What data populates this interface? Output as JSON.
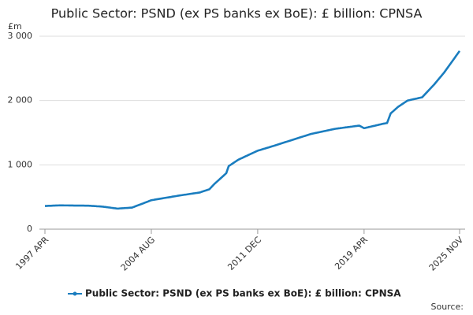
{
  "chart_data": {
    "type": "line",
    "title": "Public Sector: PSND (ex PS banks ex BoE): £ billion: CPNSA",
    "y_label": "£m",
    "source": "Source:",
    "grid": true,
    "ylim": [
      0,
      3000
    ],
    "yticks": [
      0,
      {
        "value": 1000,
        "label": "1 000"
      },
      {
        "value": 2000,
        "label": "2 000"
      },
      {
        "value": 3000,
        "label": "3 000"
      }
    ],
    "categories": [
      "1997 APR",
      null,
      null,
      null,
      null,
      null,
      null,
      null,
      null,
      null,
      null,
      null,
      null,
      null,
      null,
      null,
      null,
      null,
      null,
      null,
      null,
      null,
      null,
      null,
      null,
      null,
      null,
      null,
      null,
      null,
      null,
      null,
      null,
      null,
      null,
      null,
      null,
      null,
      null,
      null,
      null,
      null,
      null,
      null,
      null,
      null,
      null,
      null,
      null,
      null,
      null,
      null,
      null,
      null,
      null,
      null,
      null,
      null,
      null,
      null,
      null,
      null,
      null,
      null,
      null,
      null,
      null,
      null,
      null,
      null,
      null,
      null,
      null,
      null,
      null,
      null,
      null,
      null,
      null,
      null,
      null,
      null,
      null,
      null,
      null,
      null,
      null,
      null,
      "2004 AUG",
      null,
      null,
      null,
      null,
      null,
      null,
      null,
      null,
      null,
      null,
      null,
      null,
      null,
      null,
      null,
      null,
      null,
      null,
      null,
      null,
      null,
      null,
      null,
      null,
      null,
      null,
      null,
      null,
      null,
      null,
      null,
      null,
      null,
      null,
      null,
      null,
      null,
      null,
      null,
      null,
      null,
      null,
      null,
      null,
      null,
      null,
      null,
      null,
      null,
      null,
      null,
      null,
      null,
      null,
      null,
      null,
      null,
      null,
      null,
      null,
      null,
      null,
      null,
      null,
      null,
      null,
      null,
      null,
      null,
      null,
      null,
      null,
      null,
      null,
      null,
      null,
      null,
      null,
      null,
      null,
      null,
      null,
      null,
      null,
      null,
      null,
      null,
      "2011 DEC",
      null,
      null,
      null,
      null,
      null,
      null,
      null,
      null,
      null,
      null,
      null,
      null,
      null,
      null,
      null,
      null,
      null,
      null,
      null,
      null,
      null,
      null,
      null,
      null,
      null,
      null,
      null,
      null,
      null,
      null,
      null,
      null,
      null,
      null,
      null,
      null,
      null,
      null,
      null,
      null,
      null,
      null,
      null,
      null,
      null,
      null,
      null,
      null,
      null,
      null,
      null,
      null,
      null,
      null,
      null,
      null,
      null,
      null,
      null,
      null,
      null,
      null,
      null,
      null,
      null,
      null,
      null,
      null,
      null,
      null,
      null,
      null,
      null,
      null,
      null,
      null,
      null,
      null,
      null,
      null,
      null,
      null,
      null,
      null,
      null,
      null,
      null,
      "2019 APR",
      null,
      null,
      null,
      null,
      null,
      null,
      null,
      null,
      null,
      null,
      null,
      null,
      null,
      null,
      null,
      null,
      null,
      null,
      null,
      null,
      null,
      null,
      null,
      null,
      null,
      null,
      null,
      null,
      null,
      null,
      null,
      null,
      null,
      null,
      null,
      null,
      null,
      null,
      null,
      null,
      null,
      null,
      null,
      null,
      null,
      null,
      null,
      null,
      null,
      null,
      null,
      null,
      null,
      null,
      null,
      null,
      null,
      null,
      null,
      null,
      null,
      null,
      null,
      null,
      null,
      null,
      null,
      null,
      null,
      null,
      null,
      null,
      null,
      null,
      null,
      null,
      null,
      null,
      "2025 NOV"
    ],
    "series": [
      {
        "name": "Public Sector: PSND (ex PS banks ex BoE): £ billion: CPNSA",
        "color": "#1a7dbf",
        "values": [
          360,
          361,
          362,
          363,
          363,
          364,
          365,
          366,
          367,
          368,
          368,
          369,
          370,
          370,
          370,
          370,
          369,
          369,
          369,
          369,
          368,
          368,
          368,
          368,
          367,
          367,
          367,
          367,
          366,
          366,
          366,
          366,
          366,
          365,
          365,
          365,
          365,
          364,
          363,
          361,
          360,
          359,
          358,
          356,
          355,
          354,
          353,
          351,
          350,
          347,
          345,
          342,
          340,
          337,
          335,
          332,
          330,
          327,
          325,
          322,
          320,
          321,
          323,
          324,
          325,
          326,
          328,
          329,
          330,
          331,
          333,
          334,
          335,
          342,
          349,
          357,
          364,
          371,
          378,
          385,
          392,
          399,
          407,
          414,
          421,
          428,
          436,
          443,
          450,
          453,
          456,
          460,
          463,
          466,
          469,
          472,
          475,
          478,
          482,
          485,
          488,
          491,
          494,
          497,
          500,
          504,
          507,
          510,
          513,
          516,
          520,
          523,
          526,
          528,
          531,
          534,
          537,
          539,
          542,
          545,
          548,
          551,
          553,
          556,
          559,
          562,
          564,
          567,
          570,
          576,
          583,
          589,
          595,
          601,
          608,
          614,
          620,
          640,
          660,
          680,
          700,
          717,
          734,
          751,
          768,
          785,
          802,
          819,
          836,
          853,
          870,
          925,
          980,
          993,
          1005,
          1018,
          1030,
          1043,
          1055,
          1068,
          1080,
          1089,
          1098,
          1106,
          1115,
          1124,
          1133,
          1141,
          1150,
          1159,
          1168,
          1176,
          1185,
          1194,
          1203,
          1211,
          1220,
          1226,
          1231,
          1237,
          1243,
          1249,
          1254,
          1260,
          1266,
          1271,
          1277,
          1283,
          1289,
          1294,
          1300,
          1306,
          1312,
          1318,
          1324,
          1330,
          1336,
          1342,
          1348,
          1354,
          1360,
          1366,
          1372,
          1378,
          1384,
          1390,
          1396,
          1402,
          1408,
          1414,
          1420,
          1426,
          1432,
          1438,
          1444,
          1450,
          1456,
          1462,
          1468,
          1474,
          1480,
          1484,
          1488,
          1492,
          1496,
          1500,
          1504,
          1508,
          1512,
          1516,
          1520,
          1524,
          1528,
          1532,
          1536,
          1540,
          1544,
          1548,
          1552,
          1556,
          1560,
          1563,
          1565,
          1568,
          1570,
          1573,
          1575,
          1578,
          1580,
          1583,
          1585,
          1588,
          1590,
          1593,
          1595,
          1598,
          1600,
          1603,
          1605,
          1608,
          1610,
          1600,
          1590,
          1580,
          1570,
          1574,
          1579,
          1583,
          1588,
          1592,
          1596,
          1601,
          1605,
          1609,
          1614,
          1618,
          1623,
          1627,
          1631,
          1636,
          1640,
          1643,
          1647,
          1650,
          1700,
          1750,
          1800,
          1817,
          1833,
          1850,
          1867,
          1883,
          1900,
          1913,
          1925,
          1938,
          1950,
          1963,
          1975,
          1988,
          2000,
          2004,
          2008,
          2013,
          2017,
          2021,
          2025,
          2029,
          2033,
          2038,
          2042,
          2046,
          2050,
          2070,
          2090,
          2110,
          2130,
          2150,
          2170,
          2190,
          2210,
          2230,
          2250,
          2273,
          2295,
          2318,
          2340,
          2363,
          2385,
          2408,
          2430,
          2456,
          2482,
          2508,
          2535,
          2561,
          2587,
          2613,
          2639,
          2665,
          2692,
          2718,
          2744,
          2770
        ]
      }
    ]
  }
}
